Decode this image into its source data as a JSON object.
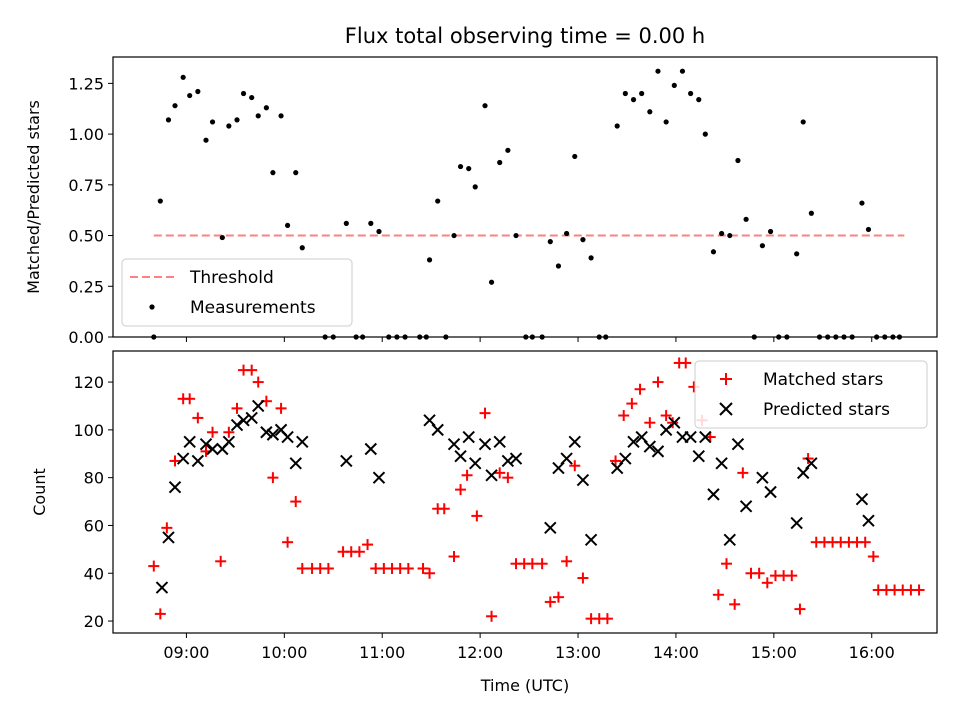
{
  "chart_data": [
    {
      "type": "scatter",
      "title": "Flux total observing time = 0.00 h",
      "xlabel": "",
      "ylabel": "Matched/Predicted stars",
      "xlim": [
        "08:15",
        "16:40"
      ],
      "ylim": [
        0,
        1.38
      ],
      "xticks": [
        "09:00",
        "10:00",
        "11:00",
        "12:00",
        "13:00",
        "14:00",
        "15:00",
        "16:00"
      ],
      "yticks": [
        "0.00",
        "0.25",
        "0.50",
        "0.75",
        "1.00",
        "1.25"
      ],
      "legend_position": "lower-left",
      "series": [
        {
          "name": "Threshold",
          "kind": "dashed-line",
          "color": "#ff8080",
          "points": [
            [
              "08:40",
              0.5
            ],
            [
              "16:20",
              0.5
            ]
          ]
        },
        {
          "name": "Measurements",
          "kind": "dots",
          "color": "#000000",
          "points": [
            [
              "08:40",
              0.0
            ],
            [
              "08:44",
              0.67
            ],
            [
              "08:49",
              1.07
            ],
            [
              "08:53",
              1.14
            ],
            [
              "08:58",
              1.28
            ],
            [
              "09:02",
              1.19
            ],
            [
              "09:07",
              1.21
            ],
            [
              "09:12",
              0.97
            ],
            [
              "09:16",
              1.06
            ],
            [
              "09:22",
              0.49
            ],
            [
              "09:26",
              1.04
            ],
            [
              "09:31",
              1.07
            ],
            [
              "09:35",
              1.2
            ],
            [
              "09:40",
              1.18
            ],
            [
              "09:44",
              1.09
            ],
            [
              "09:49",
              1.13
            ],
            [
              "09:53",
              0.81
            ],
            [
              "09:58",
              1.09
            ],
            [
              "10:02",
              0.55
            ],
            [
              "10:07",
              0.81
            ],
            [
              "10:11",
              0.44
            ],
            [
              "10:25",
              0.0
            ],
            [
              "10:30",
              0.0
            ],
            [
              "10:38",
              0.56
            ],
            [
              "10:44",
              0.0
            ],
            [
              "10:48",
              0.0
            ],
            [
              "10:53",
              0.56
            ],
            [
              "10:58",
              0.52
            ],
            [
              "11:04",
              0.0
            ],
            [
              "11:09",
              0.0
            ],
            [
              "11:14",
              0.0
            ],
            [
              "11:23",
              0.0
            ],
            [
              "11:27",
              0.0
            ],
            [
              "11:29",
              0.38
            ],
            [
              "11:34",
              0.67
            ],
            [
              "11:39",
              0.0
            ],
            [
              "11:44",
              0.5
            ],
            [
              "11:48",
              0.84
            ],
            [
              "11:53",
              0.83
            ],
            [
              "11:57",
              0.74
            ],
            [
              "12:03",
              1.14
            ],
            [
              "12:07",
              0.27
            ],
            [
              "12:12",
              0.86
            ],
            [
              "12:17",
              0.92
            ],
            [
              "12:22",
              0.5
            ],
            [
              "12:28",
              0.0
            ],
            [
              "12:32",
              0.0
            ],
            [
              "12:38",
              0.0
            ],
            [
              "12:43",
              0.47
            ],
            [
              "12:48",
              0.35
            ],
            [
              "12:53",
              0.51
            ],
            [
              "12:58",
              0.89
            ],
            [
              "13:03",
              0.48
            ],
            [
              "13:08",
              0.39
            ],
            [
              "13:13",
              0.0
            ],
            [
              "13:17",
              0.0
            ],
            [
              "13:24",
              1.04
            ],
            [
              "13:29",
              1.2
            ],
            [
              "13:34",
              1.17
            ],
            [
              "13:39",
              1.2
            ],
            [
              "13:44",
              1.11
            ],
            [
              "13:49",
              1.31
            ],
            [
              "13:54",
              1.06
            ],
            [
              "13:59",
              1.24
            ],
            [
              "14:04",
              1.31
            ],
            [
              "14:09",
              1.2
            ],
            [
              "14:14",
              1.17
            ],
            [
              "14:18",
              1.0
            ],
            [
              "14:23",
              0.42
            ],
            [
              "14:28",
              0.51
            ],
            [
              "14:33",
              0.5
            ],
            [
              "14:38",
              0.87
            ],
            [
              "14:43",
              0.58
            ],
            [
              "14:48",
              0.0
            ],
            [
              "14:53",
              0.45
            ],
            [
              "14:58",
              0.52
            ],
            [
              "15:03",
              0.0
            ],
            [
              "15:08",
              0.0
            ],
            [
              "15:14",
              0.41
            ],
            [
              "15:18",
              1.06
            ],
            [
              "15:23",
              0.61
            ],
            [
              "15:28",
              0.0
            ],
            [
              "15:33",
              0.0
            ],
            [
              "15:38",
              0.0
            ],
            [
              "15:43",
              0.0
            ],
            [
              "15:48",
              0.0
            ],
            [
              "15:54",
              0.66
            ],
            [
              "15:58",
              0.53
            ],
            [
              "16:03",
              0.0
            ],
            [
              "16:08",
              0.0
            ],
            [
              "16:13",
              0.0
            ],
            [
              "16:17",
              0.0
            ]
          ]
        }
      ]
    },
    {
      "type": "scatter",
      "title": "",
      "xlabel": "Time (UTC)",
      "ylabel": "Count",
      "xlim": [
        "08:15",
        "16:40"
      ],
      "ylim": [
        15,
        133
      ],
      "xticks": [
        "09:00",
        "10:00",
        "11:00",
        "12:00",
        "13:00",
        "14:00",
        "15:00",
        "16:00"
      ],
      "yticks": [
        "20",
        "40",
        "60",
        "80",
        "100",
        "120"
      ],
      "legend_position": "upper-right",
      "series": [
        {
          "name": "Matched stars",
          "kind": "plus",
          "color": "#ff0000",
          "points": [
            [
              "08:40",
              43
            ],
            [
              "08:44",
              23
            ],
            [
              "08:48",
              59
            ],
            [
              "08:53",
              87
            ],
            [
              "08:58",
              113
            ],
            [
              "09:02",
              113
            ],
            [
              "09:07",
              105
            ],
            [
              "09:12",
              91
            ],
            [
              "09:16",
              99
            ],
            [
              "09:21",
              45
            ],
            [
              "09:26",
              99
            ],
            [
              "09:31",
              109
            ],
            [
              "09:35",
              125
            ],
            [
              "09:40",
              125
            ],
            [
              "09:44",
              120
            ],
            [
              "09:49",
              112
            ],
            [
              "09:53",
              80
            ],
            [
              "09:58",
              109
            ],
            [
              "10:02",
              53
            ],
            [
              "10:07",
              70
            ],
            [
              "10:11",
              42
            ],
            [
              "10:17",
              42
            ],
            [
              "10:22",
              42
            ],
            [
              "10:27",
              42
            ],
            [
              "10:36",
              49
            ],
            [
              "10:41",
              49
            ],
            [
              "10:46",
              49
            ],
            [
              "10:51",
              52
            ],
            [
              "10:56",
              42
            ],
            [
              "11:01",
              42
            ],
            [
              "11:06",
              42
            ],
            [
              "11:11",
              42
            ],
            [
              "11:16",
              42
            ],
            [
              "11:25",
              42
            ],
            [
              "11:29",
              40
            ],
            [
              "11:34",
              67
            ],
            [
              "11:38",
              67
            ],
            [
              "11:44",
              47
            ],
            [
              "11:48",
              75
            ],
            [
              "11:52",
              81
            ],
            [
              "11:58",
              64
            ],
            [
              "12:03",
              107
            ],
            [
              "12:07",
              22
            ],
            [
              "12:12",
              82
            ],
            [
              "12:17",
              80
            ],
            [
              "12:22",
              44
            ],
            [
              "12:27",
              44
            ],
            [
              "12:32",
              44
            ],
            [
              "12:38",
              44
            ],
            [
              "12:43",
              28
            ],
            [
              "12:48",
              30
            ],
            [
              "12:53",
              45
            ],
            [
              "12:58",
              85
            ],
            [
              "13:03",
              38
            ],
            [
              "13:08",
              21
            ],
            [
              "13:13",
              21
            ],
            [
              "13:18",
              21
            ],
            [
              "13:23",
              87
            ],
            [
              "13:28",
              106
            ],
            [
              "13:33",
              111
            ],
            [
              "13:38",
              117
            ],
            [
              "13:44",
              103
            ],
            [
              "13:49",
              120
            ],
            [
              "13:54",
              106
            ],
            [
              "13:58",
              103
            ],
            [
              "14:02",
              128
            ],
            [
              "14:06",
              128
            ],
            [
              "14:11",
              118
            ],
            [
              "14:16",
              104
            ],
            [
              "14:21",
              97
            ],
            [
              "14:26",
              31
            ],
            [
              "14:31",
              44
            ],
            [
              "14:36",
              27
            ],
            [
              "14:41",
              82
            ],
            [
              "14:46",
              40
            ],
            [
              "14:51",
              40
            ],
            [
              "14:56",
              36
            ],
            [
              "15:01",
              39
            ],
            [
              "15:06",
              39
            ],
            [
              "15:11",
              39
            ],
            [
              "15:16",
              25
            ],
            [
              "15:21",
              88
            ],
            [
              "15:26",
              53
            ],
            [
              "15:31",
              53
            ],
            [
              "15:36",
              53
            ],
            [
              "15:41",
              53
            ],
            [
              "15:46",
              53
            ],
            [
              "15:51",
              53
            ],
            [
              "15:56",
              53
            ],
            [
              "16:01",
              47
            ],
            [
              "16:04",
              33
            ],
            [
              "16:09",
              33
            ],
            [
              "16:14",
              33
            ],
            [
              "16:19",
              33
            ],
            [
              "16:24",
              33
            ],
            [
              "16:29",
              33
            ]
          ]
        },
        {
          "name": "Predicted stars",
          "kind": "x",
          "color": "#000000",
          "points": [
            [
              "08:45",
              34
            ],
            [
              "08:49",
              55
            ],
            [
              "08:53",
              76
            ],
            [
              "08:58",
              88
            ],
            [
              "09:02",
              95
            ],
            [
              "09:07",
              87
            ],
            [
              "09:12",
              94
            ],
            [
              "09:16",
              92
            ],
            [
              "09:22",
              92
            ],
            [
              "09:26",
              95
            ],
            [
              "09:31",
              102
            ],
            [
              "09:35",
              104
            ],
            [
              "09:40",
              105
            ],
            [
              "09:44",
              110
            ],
            [
              "09:49",
              99
            ],
            [
              "09:53",
              98
            ],
            [
              "09:58",
              100
            ],
            [
              "10:02",
              97
            ],
            [
              "10:07",
              86
            ],
            [
              "10:11",
              95
            ],
            [
              "10:38",
              87
            ],
            [
              "10:53",
              92
            ],
            [
              "10:58",
              80
            ],
            [
              "11:29",
              104
            ],
            [
              "11:34",
              100
            ],
            [
              "11:44",
              94
            ],
            [
              "11:48",
              89
            ],
            [
              "11:53",
              97
            ],
            [
              "11:57",
              86
            ],
            [
              "12:03",
              94
            ],
            [
              "12:07",
              81
            ],
            [
              "12:12",
              95
            ],
            [
              "12:17",
              87
            ],
            [
              "12:22",
              88
            ],
            [
              "12:43",
              59
            ],
            [
              "12:48",
              84
            ],
            [
              "12:53",
              88
            ],
            [
              "12:58",
              95
            ],
            [
              "13:03",
              79
            ],
            [
              "13:08",
              54
            ],
            [
              "13:24",
              84
            ],
            [
              "13:29",
              88
            ],
            [
              "13:34",
              95
            ],
            [
              "13:39",
              97
            ],
            [
              "13:44",
              93
            ],
            [
              "13:49",
              91
            ],
            [
              "13:54",
              100
            ],
            [
              "13:59",
              103
            ],
            [
              "14:04",
              97
            ],
            [
              "14:09",
              97
            ],
            [
              "14:14",
              89
            ],
            [
              "14:18",
              97
            ],
            [
              "14:23",
              73
            ],
            [
              "14:28",
              86
            ],
            [
              "14:33",
              54
            ],
            [
              "14:38",
              94
            ],
            [
              "14:43",
              68
            ],
            [
              "14:53",
              80
            ],
            [
              "14:58",
              74
            ],
            [
              "15:14",
              61
            ],
            [
              "15:18",
              82
            ],
            [
              "15:23",
              86
            ],
            [
              "15:54",
              71
            ],
            [
              "15:58",
              62
            ]
          ]
        }
      ]
    }
  ]
}
